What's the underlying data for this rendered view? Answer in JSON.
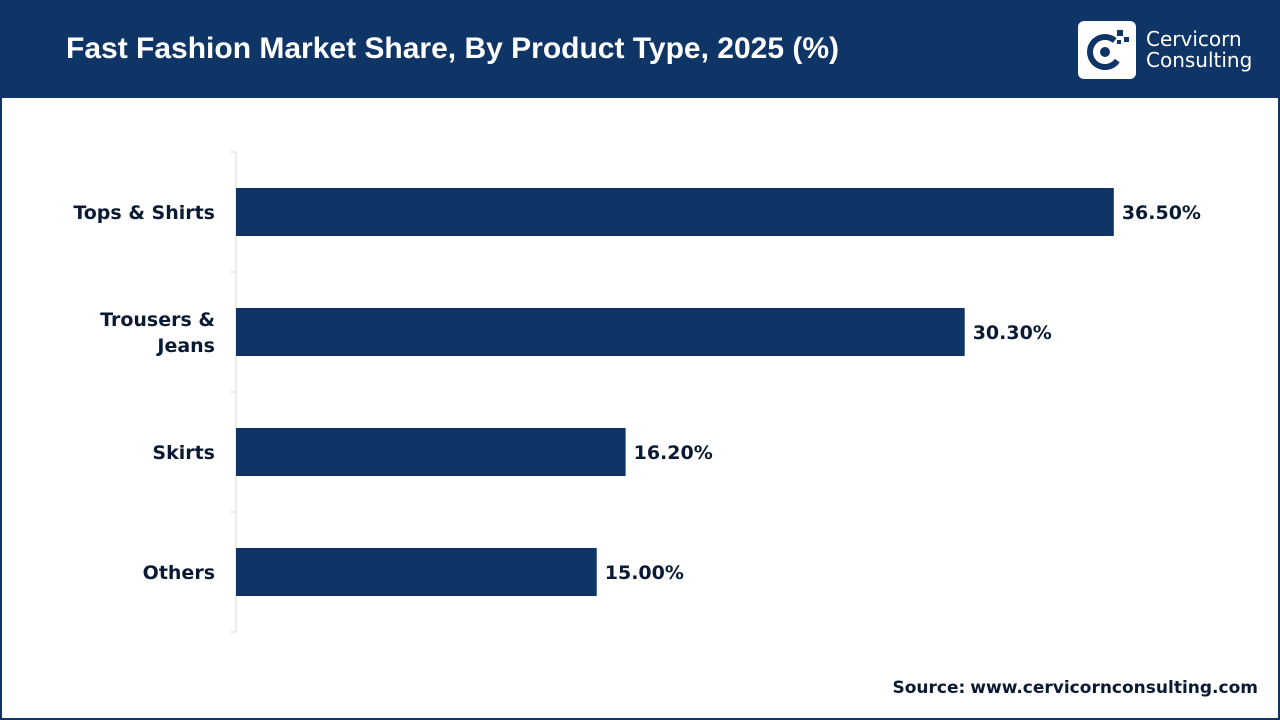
{
  "header": {
    "title": "Fast Fashion Market Share, By Product Type, 2025 (%)",
    "logo_line1": "Cervicorn",
    "logo_line2": "Consulting"
  },
  "colors": {
    "brand": "#0f3466",
    "bar": "#0f3466",
    "text": "#0a1a33",
    "axis": "#d9d9d9"
  },
  "chart_data": {
    "type": "bar",
    "orientation": "horizontal",
    "title": "Fast Fashion Market Share, By Product Type, 2025 (%)",
    "categories": [
      "Tops & Shirts",
      "Trousers & Jeans",
      "Skirts",
      "Others"
    ],
    "category_display": [
      [
        "Tops & Shirts"
      ],
      [
        "Trousers &",
        "Jeans"
      ],
      [
        "Skirts"
      ],
      [
        "Others"
      ]
    ],
    "values": [
      36.5,
      30.3,
      16.2,
      15.0
    ],
    "value_labels": [
      "36.50%",
      "30.30%",
      "16.20%",
      "15.00%"
    ],
    "xlim": [
      0,
      40
    ],
    "grid": false,
    "xlabel": "",
    "ylabel": ""
  },
  "footer": {
    "source_label": "Source:",
    "source_url": "www.cervicornconsulting.com"
  }
}
